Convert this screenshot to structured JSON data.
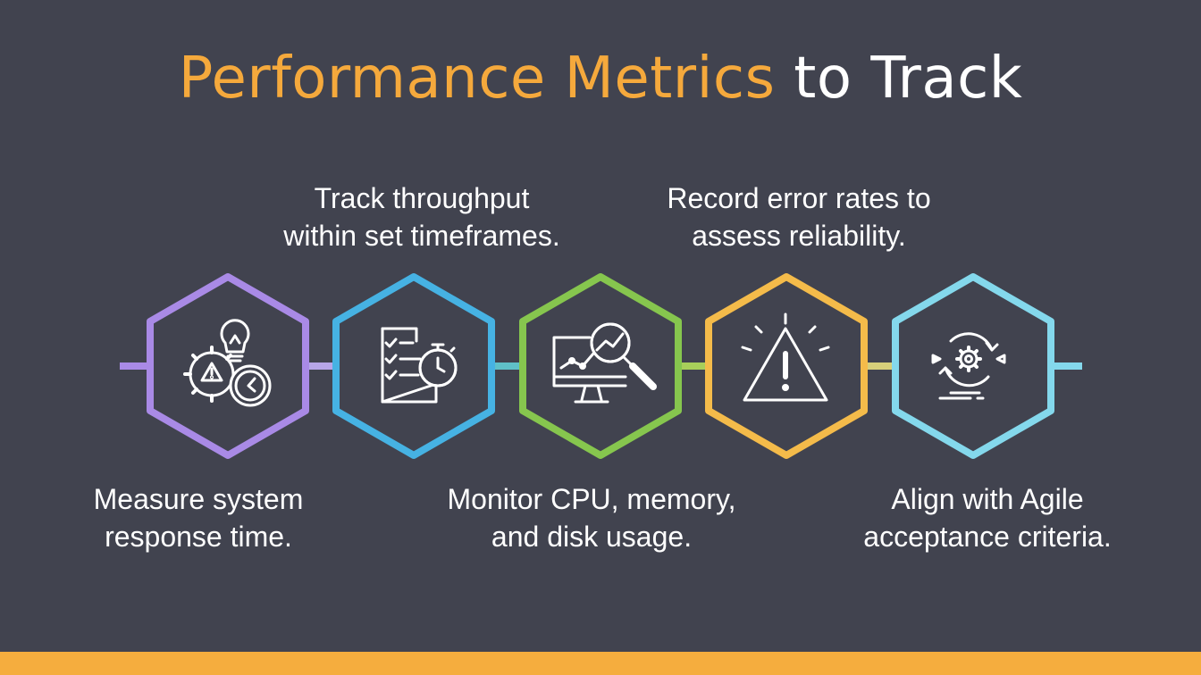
{
  "title": {
    "accent_text": "Performance Metrics",
    "rest_text": " to Track"
  },
  "colors": {
    "background": "#41434f",
    "accent": "#f5a93c",
    "footer_bar": "#f5ad3e",
    "connector": "#e9e9ee"
  },
  "steps": [
    {
      "icon": "gear-lightbulb-clock-icon",
      "color": "#a98ae6",
      "caption_position": "below",
      "caption": "Measure system\nresponse time."
    },
    {
      "icon": "checklist-stopwatch-icon",
      "color": "#46b2e3",
      "caption_position": "above",
      "caption": "Track throughput\nwithin set timeframes."
    },
    {
      "icon": "monitor-magnifier-icon",
      "color": "#86c64e",
      "caption_position": "below",
      "caption": "Monitor CPU, memory,\nand disk usage."
    },
    {
      "icon": "warning-triangle-icon",
      "color": "#f4bb4a",
      "caption_position": "above",
      "caption": "Record error rates to\nassess reliability."
    },
    {
      "icon": "gear-cycle-arrows-icon",
      "color": "#84d8ec",
      "caption_position": "below",
      "caption": "Align with Agile\nacceptance criteria."
    }
  ]
}
